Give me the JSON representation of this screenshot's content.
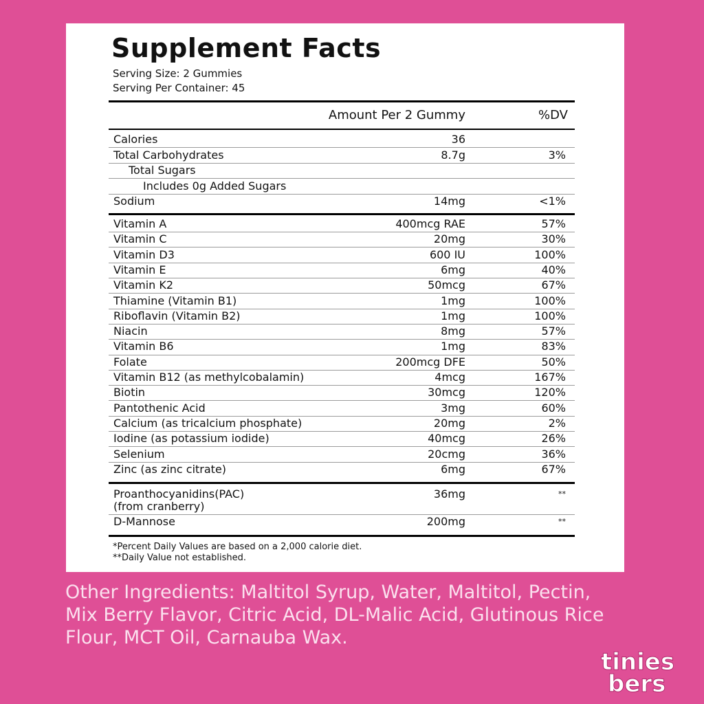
{
  "title": "Supplement Facts",
  "serving_size": "Serving Size: 2 Gummies",
  "servings_per_container": "Serving Per Container: 45",
  "header": {
    "amount": "Amount Per 2 Gummy",
    "dv": "%DV"
  },
  "sections": [
    {
      "rows": [
        {
          "name": "Calories",
          "amount": "36"
        },
        {
          "name": "Total Carbohydrates",
          "amount": "8.7g",
          "dv": "3%"
        },
        {
          "name": "Total Sugars"
        },
        {
          "name": "Includes 0g Added Sugars"
        },
        {
          "name": "Sodium",
          "amount": "14mg",
          "dv": "<1%"
        }
      ]
    },
    {
      "rows": [
        {
          "name": "Vitamin A",
          "amount": "400mcg RAE",
          "dv": "57%"
        },
        {
          "name": "Vitamin C",
          "amount": "20mg",
          "dv": "30%"
        },
        {
          "name": "Vitamin D3",
          "amount": "600 IU",
          "dv": "100%"
        },
        {
          "name": "Vitamin E",
          "amount": "6mg",
          "dv": "40%"
        },
        {
          "name": "Vitamin K2",
          "amount": "50mcg",
          "dv": "67%"
        },
        {
          "name": "Thiamine (Vitamin B1)",
          "amount": "1mg",
          "dv": "100%"
        },
        {
          "name": "Riboflavin (Vitamin B2)",
          "amount": "1mg",
          "dv": "100%"
        },
        {
          "name": "Niacin",
          "amount": "8mg",
          "dv": "57%"
        },
        {
          "name": "Vitamin B6",
          "amount": "1mg",
          "dv": "83%"
        },
        {
          "name": "Folate",
          "amount": "200mcg DFE",
          "dv": "50%"
        },
        {
          "name": "Vitamin B12 (as methylcobalamin)",
          "amount": "4mcg",
          "dv": "167%"
        },
        {
          "name": "Biotin",
          "amount": "30mcg",
          "dv": "120%"
        },
        {
          "name": "Pantothenic Acid",
          "amount": "3mg",
          "dv": "60%"
        },
        {
          "name": "Calcium (as tricalcium phosphate)",
          "amount": "20mg",
          "dv": "2%"
        },
        {
          "name": "Iodine (as potassium iodide)",
          "amount": "40mcg",
          "dv": "26%"
        },
        {
          "name": "Selenium",
          "amount": "20cmg",
          "dv": "36%"
        },
        {
          "name": "Zinc (as zinc citrate)",
          "amount": "6mg",
          "dv": "67%"
        }
      ]
    },
    {
      "rows": [
        {
          "name": "Proanthocyanidins(PAC)",
          "note": "(from cranberry)",
          "amount": "36mg",
          "dv": "**"
        },
        {
          "name": "D-Mannose",
          "amount": "200mg",
          "dv": "**"
        }
      ]
    }
  ],
  "footnotes": [
    "*Percent Daily Values are based on a 2,000 calorie diet.",
    "**Daily Value not established."
  ],
  "other_ingredients": [
    "Other Ingredients: Maltitol Syrup, Water, Maltitol, Pectin,",
    "Mix Berry Flavor, Citric Acid, DL-Malic Acid, Glutinous Rice",
    "Flour, MCT Oil, Carnauba Wax."
  ],
  "logo": [
    "tinies",
    "bers"
  ]
}
